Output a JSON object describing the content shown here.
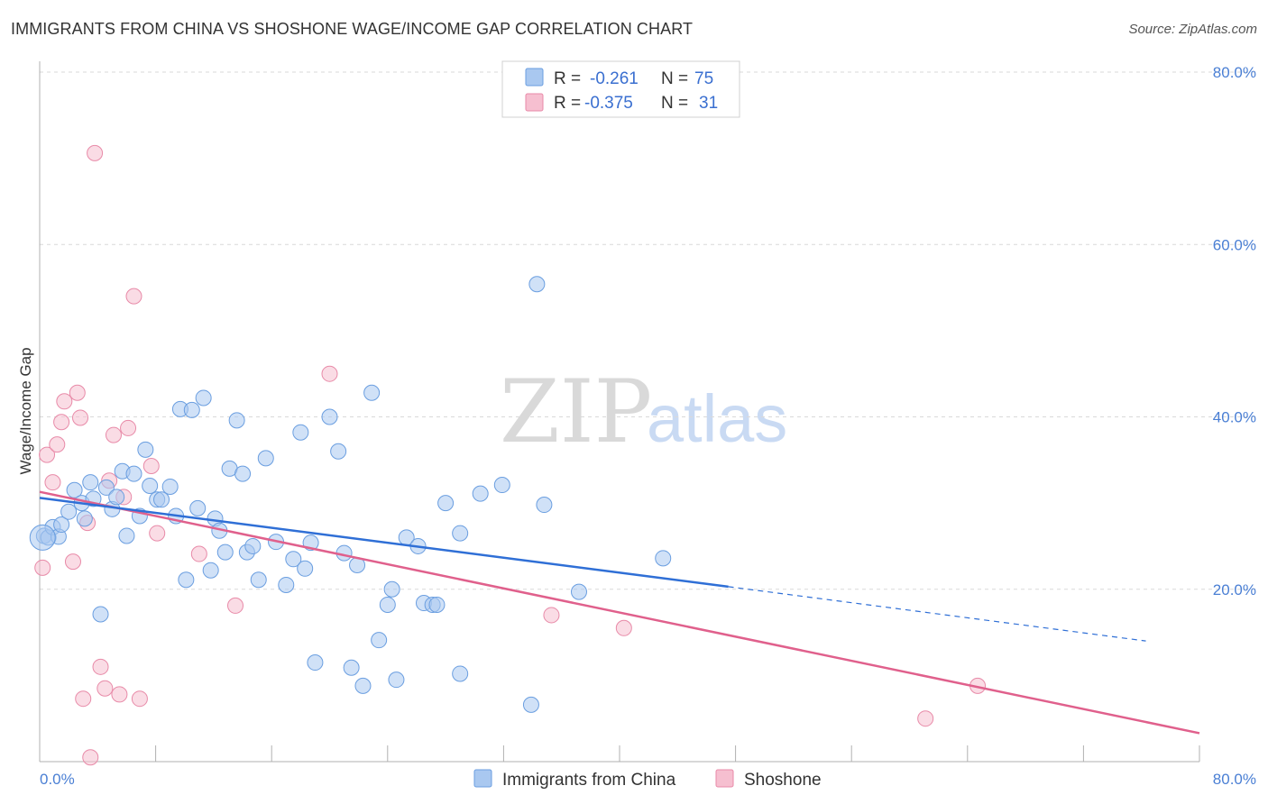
{
  "title": "IMMIGRANTS FROM CHINA VS SHOSHONE WAGE/INCOME GAP CORRELATION CHART",
  "source": "Source: ZipAtlas.com",
  "watermark": {
    "part1": "ZIP",
    "part2": "atlas"
  },
  "colors": {
    "china_fill": "#a9c8f0",
    "china_stroke": "#6a9ee0",
    "china_line": "#2f6fd6",
    "shoshone_fill": "#f6bfd0",
    "shoshone_stroke": "#e88aa8",
    "shoshone_line": "#e0608c",
    "grid": "#d9d9d9",
    "tick_label": "#4a7fd4"
  },
  "legend": {
    "rows": [
      {
        "r_label": "R =",
        "r_value": "-0.261",
        "n_label": "N =",
        "n_value": "75"
      },
      {
        "r_label": "R =",
        "r_value": "-0.375",
        "n_label": "N =",
        "n_value": "31"
      }
    ]
  },
  "chart_data": {
    "type": "scatter",
    "title": "IMMIGRANTS FROM CHINA VS SHOSHONE WAGE/INCOME GAP CORRELATION CHART",
    "ylabel": "Wage/Income Gap",
    "xlabel": "",
    "xlim": [
      0,
      80
    ],
    "ylim": [
      0,
      80
    ],
    "x_tick_labels": [
      "0.0%",
      "80.0%"
    ],
    "y_tick_labels": [
      "20.0%",
      "40.0%",
      "60.0%",
      "80.0%"
    ],
    "y_ticks": [
      20,
      40,
      60,
      80
    ],
    "grid": true,
    "series": [
      {
        "name": "Immigrants from China",
        "r": -0.261,
        "n": 75,
        "trend": {
          "x0": 0,
          "y0": 30.6,
          "x1": 47.5,
          "y1": 20.3,
          "dash_x1": 76.3,
          "dash_y1": 14.0
        },
        "points": [
          [
            0.3,
            26.2
          ],
          [
            0.6,
            26.0
          ],
          [
            0.9,
            27.2
          ],
          [
            1.3,
            26.1
          ],
          [
            1.5,
            27.5
          ],
          [
            2.0,
            29.0
          ],
          [
            2.4,
            31.5
          ],
          [
            2.9,
            30.0
          ],
          [
            3.1,
            28.2
          ],
          [
            3.5,
            32.4
          ],
          [
            3.7,
            30.5
          ],
          [
            4.2,
            17.1
          ],
          [
            4.6,
            31.8
          ],
          [
            5.0,
            29.3
          ],
          [
            5.3,
            30.7
          ],
          [
            5.7,
            33.7
          ],
          [
            6.0,
            26.2
          ],
          [
            6.5,
            33.4
          ],
          [
            6.9,
            28.5
          ],
          [
            7.3,
            36.2
          ],
          [
            7.6,
            32.0
          ],
          [
            8.1,
            30.4
          ],
          [
            8.4,
            30.4
          ],
          [
            9.0,
            31.9
          ],
          [
            9.4,
            28.5
          ],
          [
            9.7,
            40.9
          ],
          [
            10.1,
            21.1
          ],
          [
            10.5,
            40.8
          ],
          [
            10.9,
            29.4
          ],
          [
            11.3,
            42.2
          ],
          [
            11.8,
            22.2
          ],
          [
            12.1,
            28.2
          ],
          [
            12.4,
            26.8
          ],
          [
            12.8,
            24.3
          ],
          [
            13.1,
            34.0
          ],
          [
            13.6,
            39.6
          ],
          [
            14.0,
            33.4
          ],
          [
            14.3,
            24.3
          ],
          [
            14.7,
            25.0
          ],
          [
            15.1,
            21.1
          ],
          [
            15.6,
            35.2
          ],
          [
            16.3,
            25.5
          ],
          [
            17.0,
            20.5
          ],
          [
            17.5,
            23.5
          ],
          [
            18.0,
            38.2
          ],
          [
            18.3,
            22.4
          ],
          [
            18.7,
            25.4
          ],
          [
            19.0,
            11.5
          ],
          [
            20.0,
            40.0
          ],
          [
            20.6,
            36.0
          ],
          [
            21.0,
            24.2
          ],
          [
            21.5,
            10.9
          ],
          [
            21.9,
            22.8
          ],
          [
            22.3,
            8.8
          ],
          [
            22.9,
            42.8
          ],
          [
            23.4,
            14.1
          ],
          [
            24.0,
            18.2
          ],
          [
            24.3,
            20.0
          ],
          [
            24.6,
            9.5
          ],
          [
            25.3,
            26.0
          ],
          [
            26.1,
            25.0
          ],
          [
            26.5,
            18.4
          ],
          [
            27.1,
            18.2
          ],
          [
            27.4,
            18.2
          ],
          [
            28.0,
            30.0
          ],
          [
            29.0,
            26.5
          ],
          [
            29.0,
            10.2
          ],
          [
            30.4,
            31.1
          ],
          [
            31.9,
            32.1
          ],
          [
            33.9,
            6.6
          ],
          [
            34.3,
            55.4
          ],
          [
            34.8,
            29.8
          ],
          [
            37.2,
            19.7
          ],
          [
            43.0,
            23.6
          ],
          [
            0.2,
            26.0
          ]
        ]
      },
      {
        "name": "Shoshone",
        "r": -0.375,
        "n": 31,
        "trend": {
          "x0": 0,
          "y0": 31.3,
          "x1": 80,
          "y1": 3.3
        },
        "points": [
          [
            0.2,
            22.5
          ],
          [
            0.5,
            35.6
          ],
          [
            0.9,
            32.4
          ],
          [
            1.2,
            36.8
          ],
          [
            1.5,
            39.4
          ],
          [
            1.7,
            41.8
          ],
          [
            2.3,
            23.2
          ],
          [
            2.6,
            42.8
          ],
          [
            2.8,
            39.9
          ],
          [
            3.0,
            7.3
          ],
          [
            3.3,
            27.7
          ],
          [
            3.5,
            0.5
          ],
          [
            3.8,
            70.6
          ],
          [
            4.2,
            11.0
          ],
          [
            4.5,
            8.5
          ],
          [
            4.8,
            32.6
          ],
          [
            5.1,
            37.9
          ],
          [
            5.5,
            7.8
          ],
          [
            5.8,
            30.7
          ],
          [
            6.1,
            38.7
          ],
          [
            6.5,
            54.0
          ],
          [
            6.9,
            7.3
          ],
          [
            7.7,
            34.3
          ],
          [
            8.1,
            26.5
          ],
          [
            11.0,
            24.1
          ],
          [
            13.5,
            18.1
          ],
          [
            20.0,
            45.0
          ],
          [
            35.3,
            17.0
          ],
          [
            40.3,
            15.5
          ],
          [
            61.1,
            5.0
          ],
          [
            64.7,
            8.8
          ]
        ]
      }
    ]
  },
  "bottom_legend": {
    "items": [
      "Immigrants from China",
      "Shoshone"
    ]
  }
}
